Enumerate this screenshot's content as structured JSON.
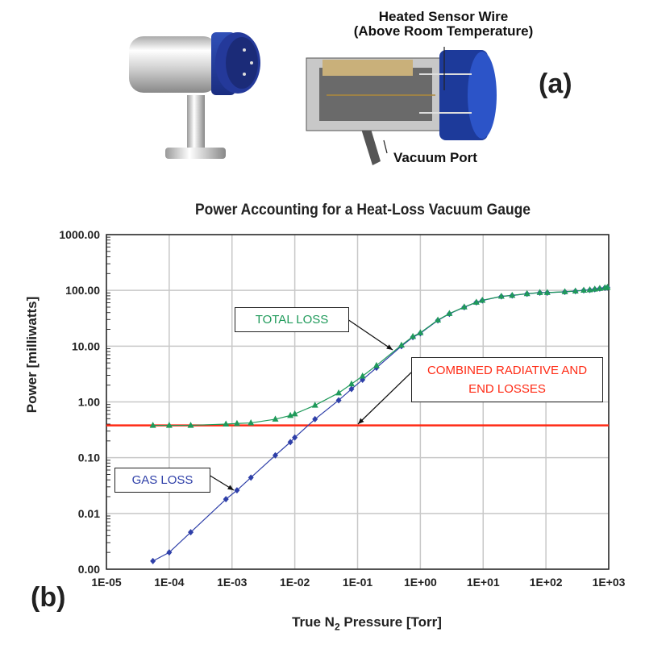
{
  "figure_a": {
    "panel_label": "(a)",
    "callout_wire_line1": "Heated Sensor Wire",
    "callout_wire_line2": "(Above Room Temperature)",
    "callout_port": "Vacuum Port"
  },
  "figure_b": {
    "panel_label": "(b)"
  },
  "colors": {
    "total": "#1f9a5a",
    "gas": "#2e3fa8",
    "radiative": "#ff2a14",
    "grid": "#c8c8c8"
  },
  "chart_data": {
    "type": "line",
    "title": "Power Accounting for a Heat-Loss Vacuum Gauge",
    "xlabel_prefix": "True N",
    "xlabel_sub": "2",
    "xlabel_suffix": " Pressure [Torr]",
    "ylabel": "Power [milliwatts]",
    "xscale": "log",
    "yscale": "log",
    "xlim": [
      1e-05,
      1000.0
    ],
    "ylim": [
      0.001,
      1000
    ],
    "grid": true,
    "xticks": [
      {
        "v": 1e-05,
        "label": "1E-05"
      },
      {
        "v": 0.0001,
        "label": "1E-04"
      },
      {
        "v": 0.001,
        "label": "1E-03"
      },
      {
        "v": 0.01,
        "label": "1E-02"
      },
      {
        "v": 0.1,
        "label": "1E-01"
      },
      {
        "v": 1,
        "label": "1E+00"
      },
      {
        "v": 10,
        "label": "1E+01"
      },
      {
        "v": 100,
        "label": "1E+02"
      },
      {
        "v": 1000,
        "label": "1E+03"
      }
    ],
    "yticks": [
      {
        "v": 1000,
        "label": "1000.00"
      },
      {
        "v": 100,
        "label": "100.00"
      },
      {
        "v": 10,
        "label": "10.00"
      },
      {
        "v": 1,
        "label": "1.00"
      },
      {
        "v": 0.1,
        "label": "0.10"
      },
      {
        "v": 0.01,
        "label": "0.01"
      },
      {
        "v": 0.001,
        "label": "0.00"
      }
    ],
    "x": [
      5.5e-05,
      0.0001,
      0.00022,
      0.0008,
      0.0012,
      0.002,
      0.0049,
      0.0085,
      0.01,
      0.021,
      0.05,
      0.08,
      0.12,
      0.2,
      0.5,
      0.76,
      1.0,
      1.9,
      2.9,
      5,
      7.8,
      9.7,
      19.5,
      29,
      50,
      80,
      105,
      200,
      295,
      400,
      500,
      600,
      720,
      870,
      955
    ],
    "series": [
      {
        "name": "TOTAL LOSS",
        "marker": "triangle",
        "values": [
          0.38,
          0.38,
          0.38,
          0.4,
          0.41,
          0.42,
          0.49,
          0.57,
          0.61,
          0.87,
          1.45,
          2.1,
          2.9,
          4.5,
          10.4,
          14.9,
          17.4,
          29.4,
          38.4,
          50.4,
          61.4,
          66.4,
          78.4,
          81.4,
          87.4,
          91.4,
          91.4,
          94.4,
          97.4,
          100.4,
          102.4,
          105.4,
          108.4,
          111.4,
          113.4
        ]
      },
      {
        "name": "GAS LOSS",
        "marker": "diamond",
        "values": [
          0.0014,
          0.002,
          0.0046,
          0.018,
          0.026,
          0.044,
          0.11,
          0.19,
          0.23,
          0.49,
          1.07,
          1.7,
          2.5,
          4.1,
          10,
          14.5,
          17,
          29,
          38,
          50,
          61,
          66,
          78,
          81,
          87,
          91,
          91,
          94,
          97,
          100,
          102,
          105,
          108,
          111,
          113
        ]
      },
      {
        "name": "COMBINED RADIATIVE AND END LOSSES",
        "marker": "none",
        "constant": 0.38
      }
    ],
    "annotations": {
      "total": "TOTAL LOSS",
      "radiative_line1": "COMBINED RADIATIVE AND",
      "radiative_line2": "END LOSSES",
      "gas": "GAS LOSS"
    }
  }
}
